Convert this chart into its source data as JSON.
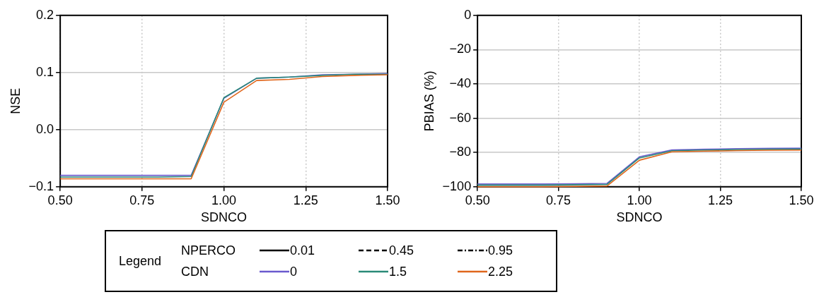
{
  "chart_data": [
    {
      "type": "line",
      "xlabel": "SDNCO",
      "ylabel": "NSE",
      "x": [
        0.5,
        0.6,
        0.7,
        0.8,
        0.9,
        1.0,
        1.1,
        1.2,
        1.3,
        1.4,
        1.5
      ],
      "xlim": [
        0.5,
        1.5
      ],
      "xticks": [
        {
          "value": 0.5,
          "label": "0.50"
        },
        {
          "value": 0.75,
          "label": "0.75"
        },
        {
          "value": 1.0,
          "label": "1.00"
        },
        {
          "value": 1.25,
          "label": "1.25"
        },
        {
          "value": 1.5,
          "label": "1.50"
        }
      ],
      "ylim": [
        -0.1,
        0.2
      ],
      "yticks": [
        {
          "value": -0.1,
          "label": "−0.1"
        },
        {
          "value": 0,
          "label": "0.0"
        },
        {
          "value": 0.1,
          "label": "0.1"
        },
        {
          "value": 0.2,
          "label": "0.2"
        }
      ],
      "grid": true,
      "legend": "bottom",
      "legend_title": "Legend",
      "annotations": [
        "NPERCO",
        "0.01",
        "0.45",
        "0.95",
        "CDN"
      ],
      "series": [
        {
          "name": "0",
          "color": "#6a5acd",
          "values": [
            -0.08,
            -0.08,
            -0.08,
            -0.08,
            -0.08,
            0.055,
            0.09,
            0.092,
            0.096,
            0.097,
            0.098
          ]
        },
        {
          "name": "1.5",
          "color": "#2a8a78",
          "values": [
            -0.083,
            -0.083,
            -0.083,
            -0.083,
            -0.082,
            0.056,
            0.09,
            0.092,
            0.095,
            0.097,
            0.097
          ]
        },
        {
          "name": "2.25",
          "color": "#e0661c",
          "values": [
            -0.086,
            -0.086,
            -0.086,
            -0.086,
            -0.086,
            0.048,
            0.086,
            0.088,
            0.093,
            0.095,
            0.096
          ]
        }
      ]
    },
    {
      "type": "line",
      "xlabel": "SDNCO",
      "ylabel": "PBIAS (%)",
      "x": [
        0.5,
        0.6,
        0.7,
        0.8,
        0.9,
        1.0,
        1.1,
        1.2,
        1.3,
        1.4,
        1.5
      ],
      "xlim": [
        0.5,
        1.5
      ],
      "xticks": [
        {
          "value": 0.5,
          "label": "0.50"
        },
        {
          "value": 0.75,
          "label": "0.75"
        },
        {
          "value": 1.0,
          "label": "1.00"
        },
        {
          "value": 1.25,
          "label": "1.25"
        },
        {
          "value": 1.5,
          "label": "1.50"
        }
      ],
      "ylim": [
        -100,
        0
      ],
      "yticks": [
        {
          "value": -100,
          "label": "−100"
        },
        {
          "value": -80,
          "label": "−80"
        },
        {
          "value": -60,
          "label": "−60"
        },
        {
          "value": -40,
          "label": "−40"
        },
        {
          "value": -20,
          "label": "−20"
        },
        {
          "value": 0,
          "label": "0"
        }
      ],
      "grid": true,
      "series": [
        {
          "color": "#6a5acd",
          "values": [
            -98.4,
            -98.4,
            -98.4,
            -98.2,
            -98,
            -82.5,
            -78.5,
            -78.1,
            -77.8,
            -77.6,
            -77.5
          ]
        },
        {
          "color": "#2a8a78",
          "values": [
            -99,
            -99,
            -99,
            -98.8,
            -98.6,
            -83.2,
            -79,
            -78.6,
            -78.3,
            -78.1,
            -78
          ]
        },
        {
          "color": "#e0661c",
          "values": [
            -100,
            -100,
            -100,
            -99.8,
            -99.5,
            -84.5,
            -79.6,
            -79.2,
            -78.9,
            -78.7,
            -78.6
          ]
        }
      ]
    }
  ]
}
